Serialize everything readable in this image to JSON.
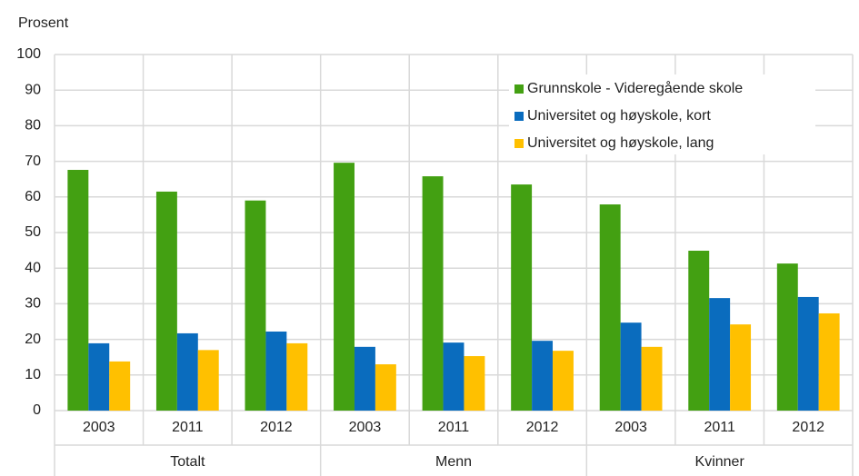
{
  "chart_data": {
    "type": "bar",
    "y_label": "Prosent",
    "groups": [
      {
        "name": "Totalt",
        "categories": [
          "2003",
          "2011",
          "2012"
        ]
      },
      {
        "name": "Menn",
        "categories": [
          "2003",
          "2011",
          "2012"
        ]
      },
      {
        "name": "Kvinner",
        "categories": [
          "2003",
          "2011",
          "2012"
        ]
      }
    ],
    "series": [
      {
        "name": "Grunnskole - Videregående skole",
        "color": "#43a012",
        "values": [
          67.6,
          61.5,
          59,
          69.6,
          65.8,
          63.5,
          57.9,
          44.9,
          41.3
        ]
      },
      {
        "name": "Universitet og høyskole, kort",
        "color": "#0a6cbe",
        "values": [
          18.9,
          21.7,
          22.2,
          17.9,
          19.1,
          19.6,
          24.7,
          31.6,
          31.9
        ]
      },
      {
        "name": "Universitet og høyskole, lang",
        "color": "#ffc000",
        "values": [
          13.8,
          17,
          18.9,
          13,
          15.3,
          16.8,
          17.9,
          24.2,
          27.3
        ]
      }
    ],
    "ylim": [
      0,
      100
    ],
    "yticks": [
      0,
      10,
      20,
      30,
      40,
      50,
      60,
      70,
      80,
      90,
      100
    ],
    "grid": true,
    "legend": "upper right"
  }
}
